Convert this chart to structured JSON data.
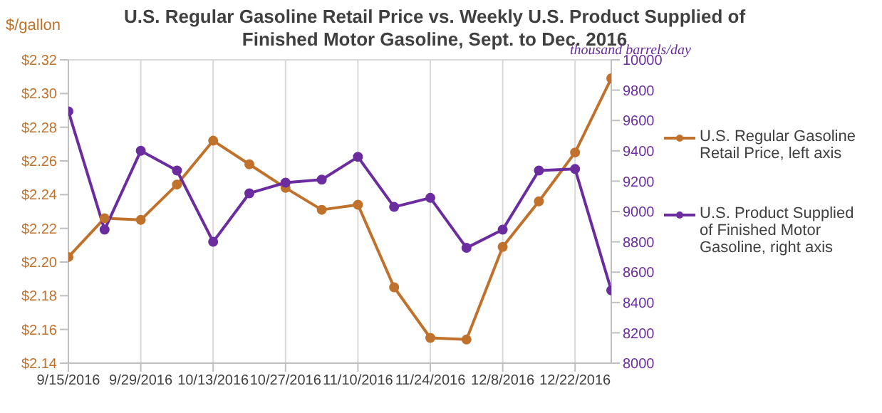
{
  "chart_data": {
    "type": "line",
    "title": "U.S. Regular Gasoline Retail Price vs. Weekly U.S. Product Supplied of Finished Motor Gasoline, Sept. to Dec. 2016",
    "ylabel": "$/gallon",
    "y2label": "thousand barrels/day",
    "categories": [
      "9/15/2016",
      null,
      "9/29/2016",
      null,
      "10/13/2016",
      null,
      "10/27/2016",
      null,
      "11/10/2016",
      null,
      "11/24/2016",
      null,
      "12/8/2016",
      null,
      "12/22/2016",
      null
    ],
    "series": [
      {
        "name": "U.S. Regular Gasoline Retail Price, left axis",
        "color": "#c0722c",
        "values": [
          2.203,
          2.226,
          2.225,
          2.246,
          2.272,
          2.258,
          2.244,
          2.231,
          2.234,
          2.185,
          2.155,
          2.154,
          2.209,
          2.236,
          2.265,
          2.309
        ]
      },
      {
        "name": "U.S. Product Supplied of Finished Motor Gasoline, right axis",
        "color": "#6a2c9e",
        "axis": "y2",
        "values": [
          9660,
          8880,
          9400,
          9270,
          8800,
          9120,
          9190,
          9210,
          9360,
          9030,
          9090,
          8760,
          8880,
          9270,
          9280,
          8480
        ]
      }
    ],
    "ylim": [
      2.14,
      2.32
    ],
    "yticks": [
      {
        "value": 2.14,
        "label": "$2.14"
      },
      {
        "value": 2.16,
        "label": "$2.16"
      },
      {
        "value": 2.18,
        "label": "$2.18"
      },
      {
        "value": 2.2,
        "label": "$2.20"
      },
      {
        "value": 2.22,
        "label": "$2.22"
      },
      {
        "value": 2.24,
        "label": "$2.24"
      },
      {
        "value": 2.26,
        "label": "$2.26"
      },
      {
        "value": 2.28,
        "label": "$2.28"
      },
      {
        "value": 2.3,
        "label": "$2.30"
      },
      {
        "value": 2.32,
        "label": "$2.32"
      }
    ],
    "y2lim": [
      8000,
      10000
    ],
    "y2ticks": [
      8000,
      8200,
      8400,
      8600,
      8800,
      9000,
      9200,
      9400,
      9600,
      9800,
      10000
    ],
    "grid": true,
    "legend": "right",
    "marker": "circle",
    "line_style": "solid"
  }
}
